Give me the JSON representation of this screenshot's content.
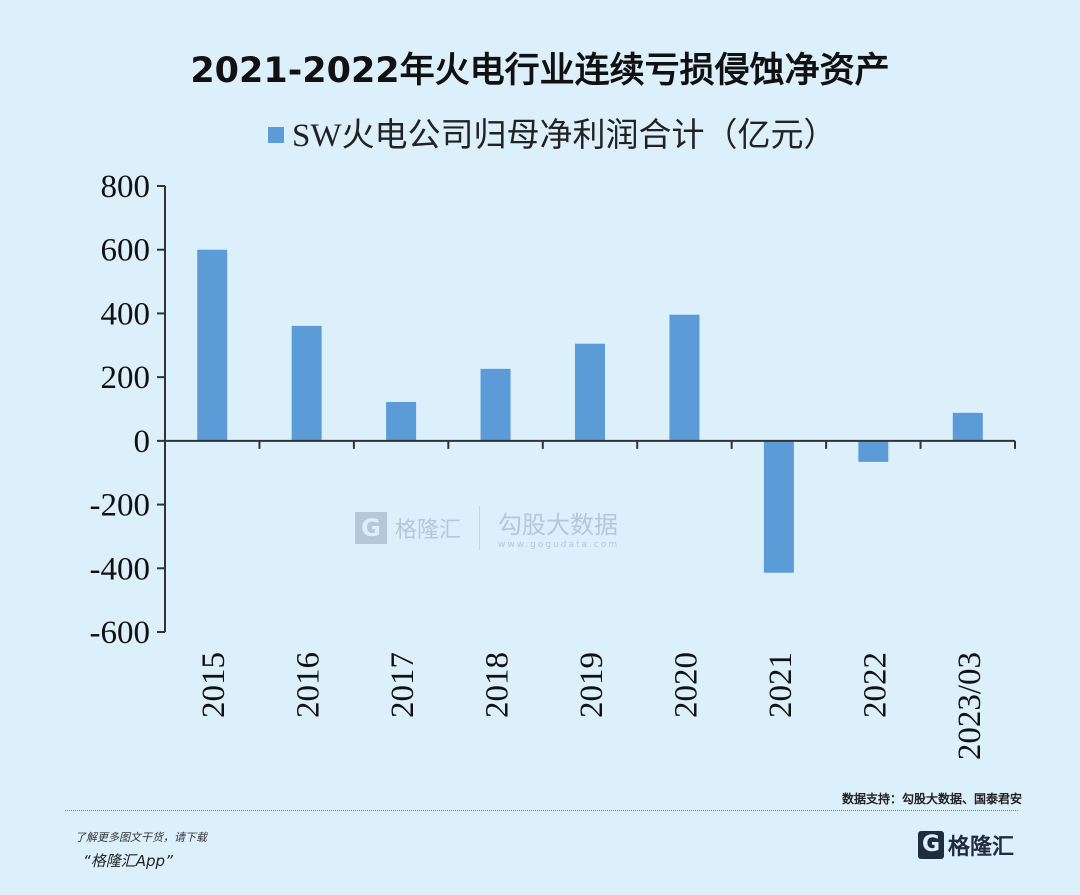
{
  "chart_data": {
    "type": "bar",
    "title": "2021-2022年火电行业连续亏损侵蚀净资产",
    "legend": "SW火电公司归母净利润合计（亿元）",
    "legend_position": "top",
    "categories": [
      "2015",
      "2016",
      "2017",
      "2018",
      "2019",
      "2020",
      "2021",
      "2022",
      "2023/03"
    ],
    "series": [
      {
        "name": "SW火电公司归母净利润合计（亿元）",
        "values": [
          600,
          361,
          122,
          226,
          305,
          396,
          -414,
          -66,
          88
        ]
      }
    ],
    "yticks": [
      "800",
      "600",
      "400",
      "200",
      "0",
      "-200",
      "-400",
      "-600"
    ],
    "ylim": [
      -600,
      800
    ],
    "grid": false,
    "bar_color": "#5b9bd8"
  },
  "footer": {
    "source": "数据支持：勾股大数据、国泰君安",
    "promo_line1": "了解更多图文干货，请下载",
    "promo_line2": "“格隆汇App”",
    "logo_text": "格隆汇",
    "logo_letter": "G"
  },
  "watermark": {
    "left": "格隆汇",
    "right": "勾股大数据",
    "url": "www.gogudata.com",
    "letter": "G"
  }
}
